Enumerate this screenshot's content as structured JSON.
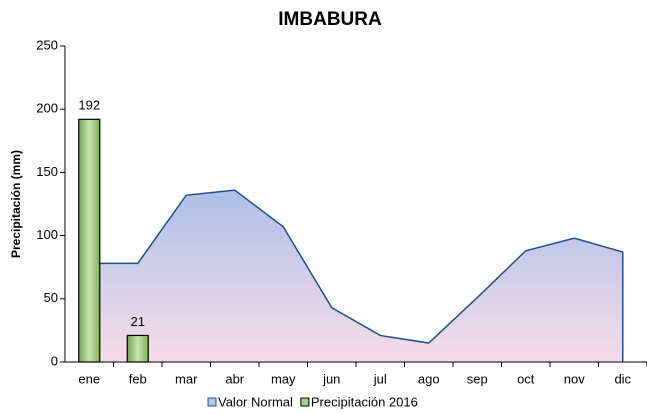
{
  "chart_data": {
    "type": "combo",
    "title": "IMBABURA",
    "y_label": "Precipitación (mm)",
    "categories": [
      "ene",
      "feb",
      "mar",
      "abr",
      "may",
      "jun",
      "jul",
      "ago",
      "sep",
      "oct",
      "nov",
      "dic"
    ],
    "series": [
      {
        "name": "Valor Normal",
        "type": "area",
        "color": "#1f4e8c",
        "values": [
          78,
          78,
          132,
          136,
          107,
          43,
          21,
          15,
          51,
          88,
          98,
          87
        ]
      },
      {
        "name": "Precipitación 2016",
        "type": "bar",
        "color": "#8fbf6e",
        "values": [
          192,
          21,
          null,
          null,
          null,
          null,
          null,
          null,
          null,
          null,
          null,
          null
        ]
      }
    ],
    "ylim": [
      0,
      250
    ],
    "yticks": [
      0,
      50,
      100,
      150,
      200,
      250
    ],
    "grid": false,
    "legend": "bottom"
  }
}
